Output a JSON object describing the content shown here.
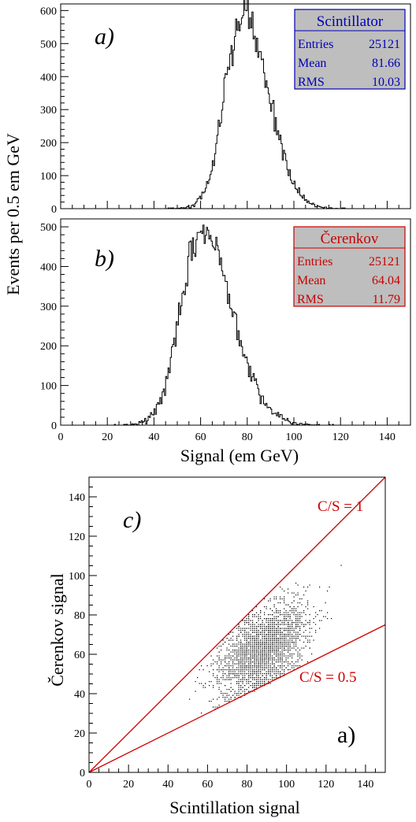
{
  "figure": {
    "shared_ylabel": "Events per 0.5 em GeV"
  },
  "chart_data": [
    {
      "type": "bar",
      "panel": "a)",
      "xlim": [
        0,
        150
      ],
      "ylim": [
        0,
        620
      ],
      "yticks": [
        0,
        100,
        200,
        300,
        400,
        500,
        600
      ],
      "xticks": [
        0,
        20,
        40,
        60,
        80,
        100,
        120,
        140
      ],
      "show_x_tick_labels": false,
      "bin_width": 0.5,
      "shape": {
        "peak_x": 78.5,
        "peak_y": 590,
        "sigma_left": 7.8,
        "sigma_right": 10.6
      },
      "series": [
        {
          "name": "Scintillator",
          "color": "#0000b4"
        }
      ],
      "stats": {
        "title": "Scintillator",
        "rows": [
          {
            "label": "Entries",
            "value": "25121"
          },
          {
            "label": "Mean",
            "value": "81.66"
          },
          {
            "label": "RMS",
            "value": "10.03"
          }
        ],
        "box_fill": "#bebebe",
        "text_color": "#0000b4",
        "placement": "top-right"
      }
    },
    {
      "type": "bar",
      "panel": "b)",
      "xlim": [
        0,
        150
      ],
      "ylim": [
        0,
        520
      ],
      "yticks": [
        0,
        100,
        200,
        300,
        400,
        500
      ],
      "xticks": [
        0,
        20,
        40,
        60,
        80,
        100,
        120,
        140
      ],
      "show_x_tick_labels": true,
      "xlabel": "Signal (em GeV)",
      "bin_width": 0.5,
      "shape": {
        "peak_x": 60.5,
        "peak_y": 490,
        "sigma_left": 8.8,
        "sigma_right": 13.2
      },
      "series": [
        {
          "name": "Čerenkov",
          "color": "#c80000"
        }
      ],
      "stats": {
        "title": "Čerenkov",
        "rows": [
          {
            "label": "Entries",
            "value": "25121"
          },
          {
            "label": "Mean",
            "value": "64.04"
          },
          {
            "label": "RMS",
            "value": "11.79"
          }
        ],
        "box_fill": "#bebebe",
        "text_color": "#c80000",
        "placement": "top-right"
      }
    },
    {
      "type": "scatter",
      "panel": "c)",
      "corner_label": "a)",
      "xlim": [
        0,
        150
      ],
      "ylim": [
        0,
        150
      ],
      "xticks": [
        0,
        20,
        40,
        60,
        80,
        100,
        120,
        140
      ],
      "yticks": [
        0,
        20,
        40,
        60,
        80,
        100,
        120,
        140
      ],
      "xlabel": "Scintillation signal",
      "ylabel": "Čerenkov signal",
      "cluster": {
        "center_x": 88,
        "center_y": 63,
        "sd_x": 11,
        "sd_y": 12,
        "n_points": 2600
      },
      "reference_lines": [
        {
          "label": "C/S = 1",
          "slope": 1,
          "color": "#cc0000"
        },
        {
          "label": "C/S = 0.5",
          "slope": 0.5,
          "color": "#cc0000"
        }
      ]
    }
  ]
}
